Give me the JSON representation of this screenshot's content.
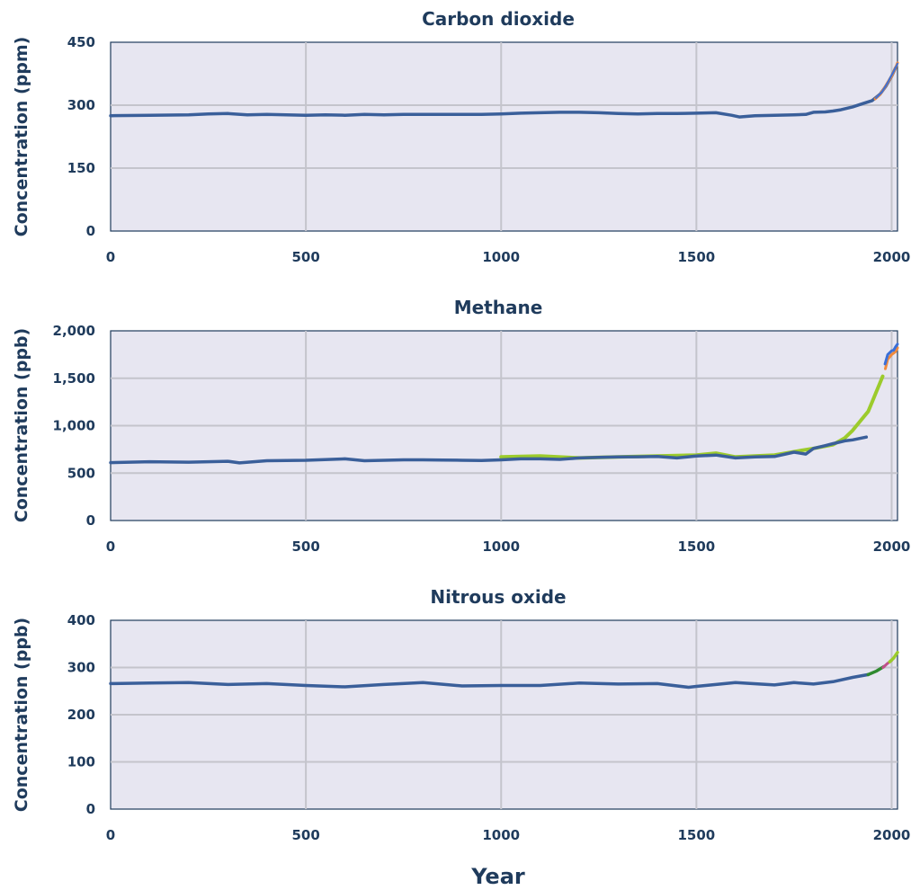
{
  "figure": {
    "xlabel": "Year"
  },
  "chart_data": [
    {
      "type": "line",
      "title": "Carbon dioxide",
      "xlabel": "",
      "ylabel": "Concentration (ppm)",
      "xlim": [
        0,
        2015
      ],
      "ylim": [
        0,
        450
      ],
      "x_ticks": [
        0,
        500,
        1000,
        1500,
        2000
      ],
      "x_tick_labels": [
        "0",
        "500",
        "1000",
        "1500",
        "2000"
      ],
      "y_ticks": [
        0,
        150,
        300,
        450
      ],
      "y_tick_labels": [
        "0",
        "150",
        "300",
        "450"
      ],
      "grid": true,
      "series": [
        {
          "color": "#3a5f9a",
          "width": 3.5,
          "x": [
            0,
            100,
            200,
            250,
            300,
            350,
            400,
            450,
            500,
            550,
            600,
            650,
            700,
            750,
            800,
            850,
            900,
            950,
            1000,
            1050,
            1100,
            1150,
            1200,
            1250,
            1300,
            1350,
            1400,
            1450,
            1500,
            1550,
            1590,
            1610,
            1650,
            1700,
            1750,
            1780,
            1800,
            1830,
            1850,
            1870,
            1900,
            1930,
            1950,
            1970,
            1985,
            2000,
            2010
          ],
          "y": [
            275,
            276,
            277,
            279,
            280,
            277,
            278,
            277,
            276,
            277,
            276,
            278,
            277,
            278,
            278,
            278,
            278,
            278,
            279,
            281,
            282,
            283,
            283,
            282,
            280,
            279,
            280,
            280,
            281,
            282,
            276,
            272,
            275,
            276,
            277,
            278,
            283,
            284,
            286,
            289,
            296,
            305,
            311,
            326,
            345,
            369,
            389
          ]
        },
        {
          "color": "#f08a3c",
          "width": 3,
          "x": [
            1958,
            1970,
            1980,
            1990,
            2000,
            2010,
            2015
          ],
          "y": [
            315,
            325,
            339,
            354,
            369,
            389,
            401
          ]
        },
        {
          "color": "#3a6fd8",
          "width": 2,
          "x": [
            1960,
            1975,
            1990,
            2005,
            2015
          ],
          "y": [
            317,
            331,
            354,
            380,
            399
          ]
        }
      ]
    },
    {
      "type": "line",
      "title": "Methane",
      "xlabel": "",
      "ylabel": "Concentration (ppb)",
      "xlim": [
        0,
        2015
      ],
      "ylim": [
        0,
        2000
      ],
      "x_ticks": [
        0,
        500,
        1000,
        1500,
        2000
      ],
      "x_tick_labels": [
        "0",
        "500",
        "1000",
        "1500",
        "2000"
      ],
      "y_ticks": [
        0,
        500,
        1000,
        1500,
        2000
      ],
      "y_tick_labels": [
        "0",
        "500",
        "1,000",
        "1,500",
        "2,000"
      ],
      "grid": true,
      "series": [
        {
          "color": "#9ccb2c",
          "width": 4,
          "x": [
            1000,
            1100,
            1200,
            1300,
            1400,
            1500,
            1550,
            1600,
            1700,
            1800,
            1850,
            1880,
            1900,
            1920,
            1940,
            1950,
            1960,
            1970,
            1977
          ],
          "y": [
            670,
            680,
            660,
            670,
            680,
            690,
            710,
            670,
            690,
            760,
            800,
            870,
            950,
            1050,
            1150,
            1250,
            1350,
            1450,
            1520
          ]
        },
        {
          "color": "#3a5f9a",
          "width": 3.5,
          "x": [
            0,
            100,
            200,
            300,
            330,
            400,
            500,
            600,
            650,
            700,
            750,
            800,
            850,
            900,
            950,
            1000,
            1050,
            1100,
            1150,
            1200,
            1250,
            1300,
            1350,
            1400,
            1450,
            1500,
            1550,
            1600,
            1650,
            1700,
            1750,
            1780,
            1800,
            1830,
            1850,
            1880,
            1900,
            1935
          ],
          "y": [
            610,
            620,
            615,
            625,
            608,
            630,
            635,
            650,
            630,
            635,
            640,
            640,
            638,
            635,
            632,
            640,
            650,
            650,
            645,
            660,
            665,
            670,
            672,
            675,
            660,
            680,
            690,
            660,
            670,
            675,
            720,
            700,
            760,
            790,
            810,
            840,
            850,
            880
          ]
        },
        {
          "color": "#f08a3c",
          "width": 3,
          "x": [
            1984,
            1990,
            2000,
            2010,
            2015
          ],
          "y": [
            1600,
            1700,
            1750,
            1780,
            1820
          ]
        },
        {
          "color": "#3a6fd8",
          "width": 3,
          "x": [
            1983,
            1990,
            2000,
            2005,
            2010,
            2015
          ],
          "y": [
            1650,
            1750,
            1790,
            1795,
            1830,
            1860
          ]
        }
      ]
    },
    {
      "type": "line",
      "title": "Nitrous oxide",
      "xlabel": "",
      "ylabel": "Concentration (ppb)",
      "xlim": [
        0,
        2015
      ],
      "ylim": [
        0,
        400
      ],
      "x_ticks": [
        0,
        500,
        1000,
        1500,
        2000
      ],
      "x_tick_labels": [
        "0",
        "500",
        "1000",
        "1500",
        "2000"
      ],
      "y_ticks": [
        0,
        100,
        200,
        300,
        400
      ],
      "y_tick_labels": [
        "0",
        "100",
        "200",
        "300",
        "400"
      ],
      "grid": true,
      "series": [
        {
          "color": "#3a5f9a",
          "width": 3.5,
          "x": [
            0,
            100,
            200,
            300,
            400,
            500,
            600,
            700,
            800,
            900,
            1000,
            1100,
            1200,
            1300,
            1400,
            1480,
            1500,
            1600,
            1700,
            1750,
            1800,
            1850,
            1900,
            1940
          ],
          "y": [
            266,
            267,
            268,
            264,
            266,
            262,
            259,
            264,
            268,
            261,
            262,
            262,
            267,
            265,
            266,
            258,
            260,
            268,
            263,
            268,
            265,
            270,
            279,
            285
          ]
        },
        {
          "color": "#2f8a2f",
          "width": 3.5,
          "x": [
            1940,
            1960,
            1980
          ],
          "y": [
            285,
            292,
            302
          ]
        },
        {
          "color": "#c0508a",
          "width": 3,
          "x": [
            1978,
            1990,
            2000
          ],
          "y": [
            300,
            309,
            315
          ]
        },
        {
          "color": "#9ccb2c",
          "width": 3.5,
          "x": [
            1995,
            2005,
            2015
          ],
          "y": [
            312,
            320,
            332
          ]
        }
      ]
    }
  ]
}
